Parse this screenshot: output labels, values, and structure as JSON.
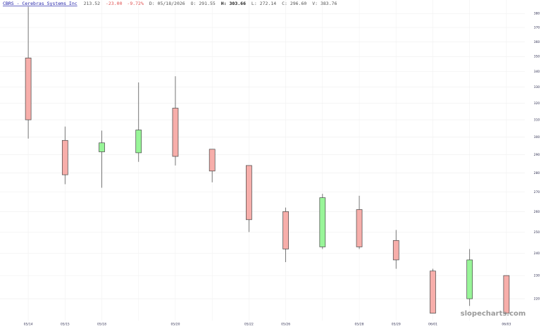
{
  "chart_data": {
    "type": "candlestick",
    "header": {
      "link": "CBRS - Cerebras Systems Inc",
      "last": "213.52",
      "change": "-23.00",
      "change_pct": "-9.72%",
      "date": "D: 05/18/2026",
      "open": "O: 291.55",
      "high": "H: 303.66",
      "low": "L: 272.14",
      "close": "C: 296.60",
      "volume": "V: 383.76"
    },
    "watermark": "slopecharts.com",
    "categories": [
      "05/14",
      "05/15",
      "05/18",
      null,
      "05/20",
      null,
      "05/22",
      "05/26",
      null,
      "05/28",
      "05/29",
      "06/01",
      null,
      "06/03"
    ],
    "open": [
      349,
      298,
      291.55,
      291,
      317,
      293,
      284,
      260,
      243,
      261,
      246,
      232,
      220,
      230
    ],
    "high": [
      385,
      306,
      303.66,
      333,
      337,
      293,
      284,
      262,
      269,
      268,
      251,
      233,
      242,
      230
    ],
    "low": [
      299,
      274,
      272.14,
      286,
      284,
      275,
      250,
      236,
      242,
      242,
      233,
      214,
      217,
      214
    ],
    "close": [
      310,
      279,
      296.6,
      304,
      289,
      281,
      256,
      242,
      267,
      243,
      237,
      214,
      237,
      214
    ],
    "up_color": "#98f598",
    "down_color": "#f7aeaa",
    "ylim": [
      211,
      390
    ],
    "yticks": [
      220,
      230,
      240,
      250,
      260,
      270,
      280,
      290,
      300,
      310,
      320,
      330,
      340,
      350,
      360,
      370,
      380
    ],
    "log_scale": true,
    "grid": true
  }
}
